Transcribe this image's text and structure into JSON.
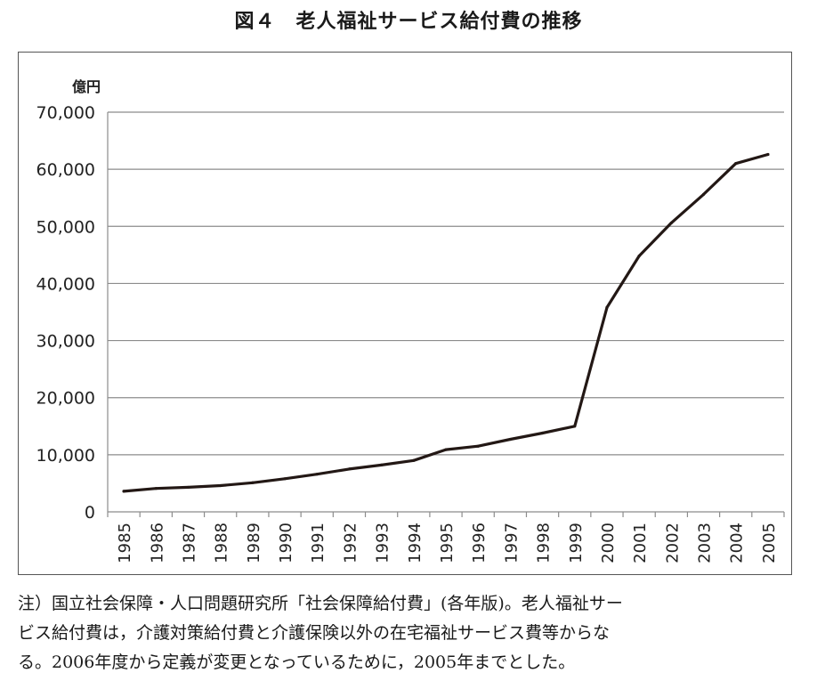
{
  "figure": {
    "title": "図４　老人福祉サービス給付費の推移"
  },
  "chart_data": {
    "type": "line",
    "unit_label": "億円",
    "xlabel": "",
    "ylabel": "",
    "ylim": [
      0,
      70000
    ],
    "yticks": [
      0,
      10000,
      20000,
      30000,
      40000,
      50000,
      60000,
      70000
    ],
    "ytick_labels": [
      "0",
      "10,000",
      "20,000",
      "30,000",
      "40,000",
      "50,000",
      "60,000",
      "70,000"
    ],
    "grid": true,
    "legend": "none",
    "categories": [
      "1985",
      "1986",
      "1987",
      "1988",
      "1989",
      "1990",
      "1991",
      "1992",
      "1993",
      "1994",
      "1995",
      "1996",
      "1997",
      "1998",
      "1999",
      "2000",
      "2001",
      "2002",
      "2003",
      "2004",
      "2005"
    ],
    "series": [
      {
        "values": [
          3600,
          4100,
          4300,
          4600,
          5100,
          5800,
          6600,
          7500,
          8200,
          9000,
          10900,
          11500,
          12700,
          13800,
          15000,
          35800,
          44800,
          50600,
          55600,
          61000,
          62600
        ],
        "color": "#231815"
      }
    ]
  },
  "note": {
    "lines": [
      "注）国立社会保障・人口問題研究所「社会保障給付費」(各年版)。老人福祉サー",
      "ビス給付費は，介護対策給付費と介護保険以外の在宅福祉サービス費等からな",
      "る。2006年度から定義が変更となっているために，2005年までとした。"
    ]
  }
}
